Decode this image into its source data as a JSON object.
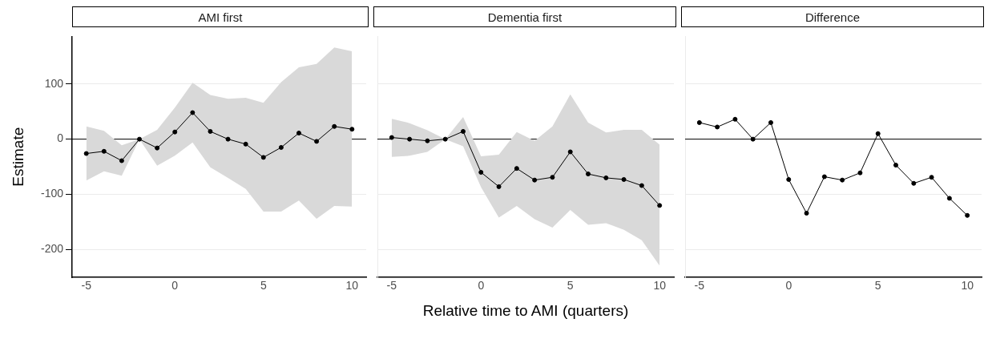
{
  "chart_data": [
    {
      "type": "line",
      "title": "AMI first",
      "ylabel": "Estimate",
      "x": [
        -5,
        -4,
        -3,
        -2,
        -1,
        0,
        1,
        2,
        3,
        4,
        5,
        6,
        7,
        8,
        9,
        10
      ],
      "xlim": [
        -5.8,
        10.8
      ],
      "xticks": [
        -5,
        0,
        5,
        10
      ],
      "ylim": [
        -250,
        186
      ],
      "yticks": [
        -200,
        -100,
        0,
        100
      ],
      "grid": "y",
      "marker": "circle",
      "ref_lines": [
        {
          "axis": "y",
          "value": 0
        }
      ],
      "series": [
        {
          "color": "#000000",
          "values": [
            -26,
            -22,
            -39,
            0,
            -16,
            13,
            48,
            14,
            0,
            -9,
            -33,
            -15,
            11,
            -4,
            23,
            18
          ],
          "lower": [
            -75,
            -58,
            -66,
            0,
            -48,
            -30,
            -6,
            -51,
            -70,
            -90,
            -131,
            -131,
            -111,
            -144,
            -121,
            -122
          ],
          "upper": [
            23,
            15,
            -11,
            0,
            17,
            57,
            102,
            80,
            73,
            75,
            66,
            103,
            130,
            136,
            166,
            159
          ]
        }
      ]
    },
    {
      "type": "line",
      "title": "Dementia first",
      "xlabel": "Relative time to AMI (quarters)",
      "x": [
        -5,
        -4,
        -3,
        -2,
        -1,
        0,
        1,
        2,
        3,
        4,
        5,
        6,
        7,
        8,
        9,
        10
      ],
      "xlim": [
        -5.8,
        10.8
      ],
      "xticks": [
        -5,
        0,
        5,
        10
      ],
      "ylim": [
        -250,
        186
      ],
      "yticks": [
        -200,
        -100,
        0,
        100
      ],
      "tick_labels": "x",
      "grid": "y",
      "marker": "circle",
      "ref_lines": [
        {
          "axis": "y",
          "value": 0
        }
      ],
      "series": [
        {
          "color": "#000000",
          "values": [
            3,
            0,
            -3,
            0,
            14,
            -60,
            -86,
            -53,
            -74,
            -69,
            -23,
            -63,
            -70,
            -73,
            -84,
            -120
          ],
          "lower": [
            -32,
            -30,
            -23,
            0,
            -13,
            -87,
            -142,
            -121,
            -145,
            -160,
            -128,
            -155,
            -152,
            -164,
            -183,
            -229
          ],
          "upper": [
            37,
            29,
            16,
            0,
            40,
            -31,
            -28,
            13,
            -3,
            23,
            81,
            30,
            12,
            17,
            17,
            -10
          ]
        }
      ]
    },
    {
      "type": "line",
      "title": "Difference",
      "x": [
        -5,
        -4,
        -3,
        -2,
        -1,
        0,
        1,
        2,
        3,
        4,
        5,
        6,
        7,
        8,
        9,
        10
      ],
      "xlim": [
        -5.8,
        10.8
      ],
      "xticks": [
        -5,
        0,
        5,
        10
      ],
      "ylim": [
        -250,
        186
      ],
      "yticks": [
        -200,
        -100,
        0,
        100
      ],
      "tick_labels": "x",
      "grid": "y",
      "marker": "circle",
      "ref_lines": [
        {
          "axis": "y",
          "value": 0
        }
      ],
      "series": [
        {
          "color": "#000000",
          "values": [
            30,
            22,
            36,
            0,
            30,
            -73,
            -134,
            -68,
            -74,
            -61,
            10,
            -47,
            -80,
            -69,
            -107,
            -138
          ]
        }
      ]
    }
  ]
}
